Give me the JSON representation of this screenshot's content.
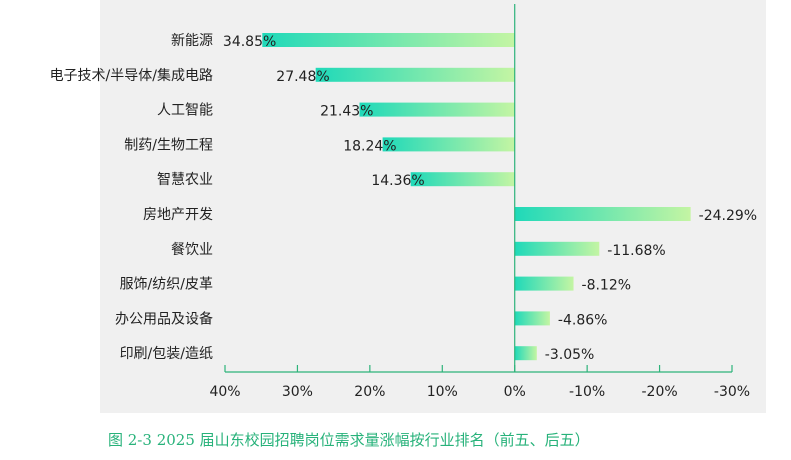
{
  "chart_data": {
    "type": "bar",
    "orientation": "horizontal",
    "x_axis_reversed": true,
    "categories": [
      "新能源",
      "电子技术/半导体/集成电路",
      "人工智能",
      "制药/生物工程",
      "智慧农业",
      "房地产开发",
      "餐饮业",
      "服饰/纺织/皮革",
      "办公用品及设备",
      "印刷/包装/造纸"
    ],
    "values": [
      34.85,
      27.48,
      21.43,
      18.24,
      14.36,
      -24.29,
      -11.68,
      -8.12,
      -4.86,
      -3.05
    ],
    "value_labels": [
      "34.85%",
      "27.48%",
      "21.43%",
      "18.24%",
      "14.36%",
      "-24.29%",
      "-11.68%",
      "-8.12%",
      "-4.86%",
      "-3.05%"
    ],
    "xlim": [
      40,
      -30
    ],
    "xticks": [
      40,
      30,
      20,
      10,
      0,
      -10,
      -20,
      -30
    ],
    "xtick_labels": [
      "40%",
      "30%",
      "20%",
      "10%",
      "0%",
      "-10%",
      "-20%",
      "-30%"
    ],
    "grid": false,
    "colors": {
      "bar_start": "#1fd9b9",
      "bar_end": "#c4f5a3",
      "axis": "#2db37a",
      "background": "#f0f0f0"
    }
  },
  "caption": "图 2-3 2025 届山东校园招聘岗位需求量涨幅按行业排名（前五、后五）"
}
